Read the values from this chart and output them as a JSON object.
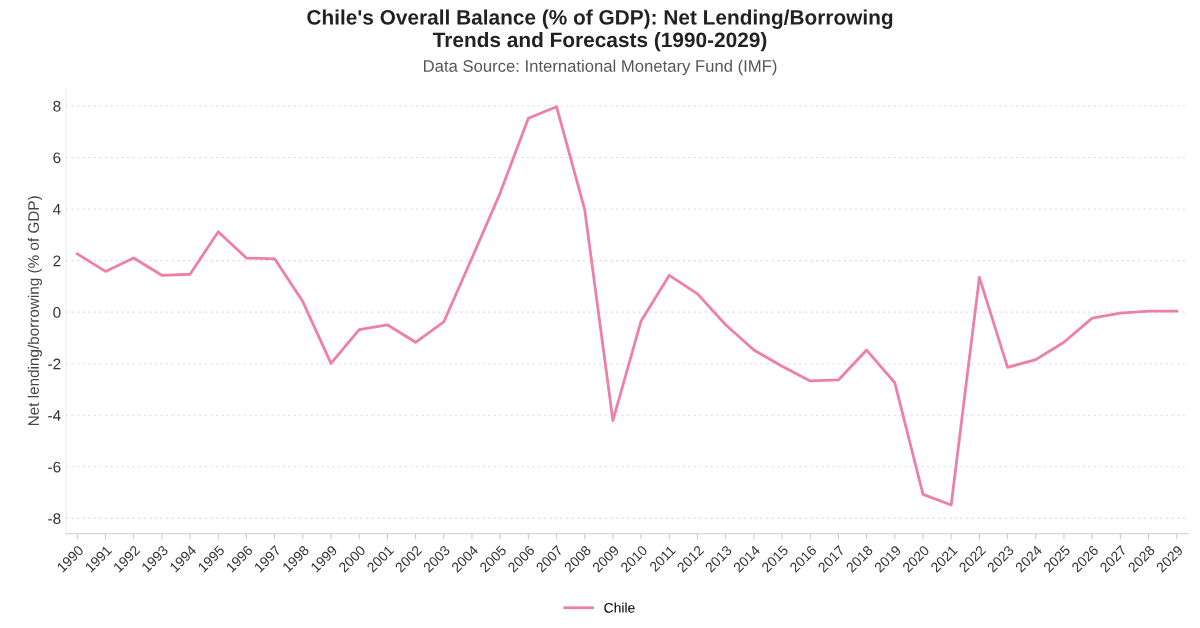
{
  "chart_data": {
    "type": "line",
    "title": "Chile's Overall Balance (% of GDP): Net Lending/Borrowing\nTrends and Forecasts (1990-2029)",
    "subtitle": "Data Source: International Monetary Fund (IMF)",
    "ylabel": "Net lending/borrowing (% of GDP)",
    "categories": [
      "1990",
      "1991",
      "1992",
      "1993",
      "1994",
      "1995",
      "1996",
      "1997",
      "1998",
      "1999",
      "2000",
      "2001",
      "2002",
      "2003",
      "2004",
      "2005",
      "2006",
      "2007",
      "2008",
      "2009",
      "2010",
      "2011",
      "2012",
      "2013",
      "2014",
      "2015",
      "2016",
      "2017",
      "2018",
      "2019",
      "2020",
      "2021",
      "2022",
      "2023",
      "2024",
      "2025",
      "2026",
      "2027",
      "2028",
      "2029"
    ],
    "series": [
      {
        "name": "Chile",
        "color": "#ee7eaa",
        "values": [
          2.26,
          1.58,
          2.1,
          1.43,
          1.47,
          3.12,
          2.1,
          2.07,
          0.41,
          -1.99,
          -0.68,
          -0.49,
          -1.17,
          -0.38,
          2.1,
          4.62,
          7.52,
          7.97,
          3.98,
          -4.21,
          -0.34,
          1.43,
          0.71,
          -0.49,
          -1.47,
          -2.1,
          -2.67,
          -2.63,
          -1.47,
          -2.74,
          -7.07,
          -7.48,
          1.35,
          -2.14,
          -1.84,
          -1.17,
          -0.23,
          -0.04,
          0.04,
          0.04
        ]
      }
    ],
    "ylim": [
      -8.6,
      8.7
    ],
    "yticks": [
      -8,
      -6,
      -4,
      -2,
      0,
      2,
      4,
      6,
      8
    ],
    "grid": "y",
    "legend": "bottom",
    "marker": "none",
    "line_style": "solid"
  }
}
